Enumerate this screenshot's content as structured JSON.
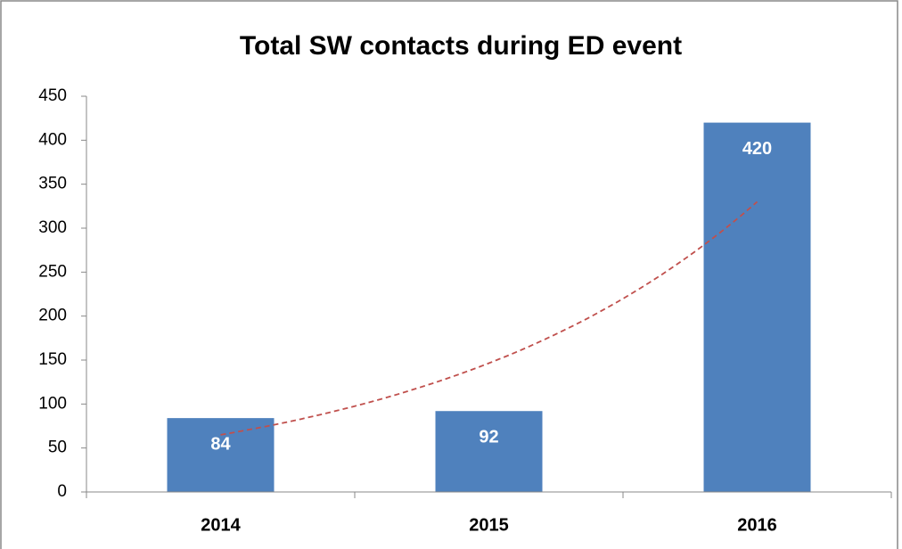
{
  "chart_data": {
    "type": "bar",
    "title": "Total SW contacts during ED event",
    "categories": [
      "2014",
      "2015",
      "2016"
    ],
    "values": [
      84,
      92,
      420
    ],
    "color": "#4f81bd",
    "ylim": [
      0,
      450
    ],
    "yticks": [
      0,
      50,
      100,
      150,
      200,
      250,
      300,
      350,
      400,
      450
    ],
    "grid": false,
    "trendline": {
      "type": "exponential",
      "color": "#c0504d",
      "dashed": true,
      "values": [
        65,
        330
      ]
    }
  }
}
